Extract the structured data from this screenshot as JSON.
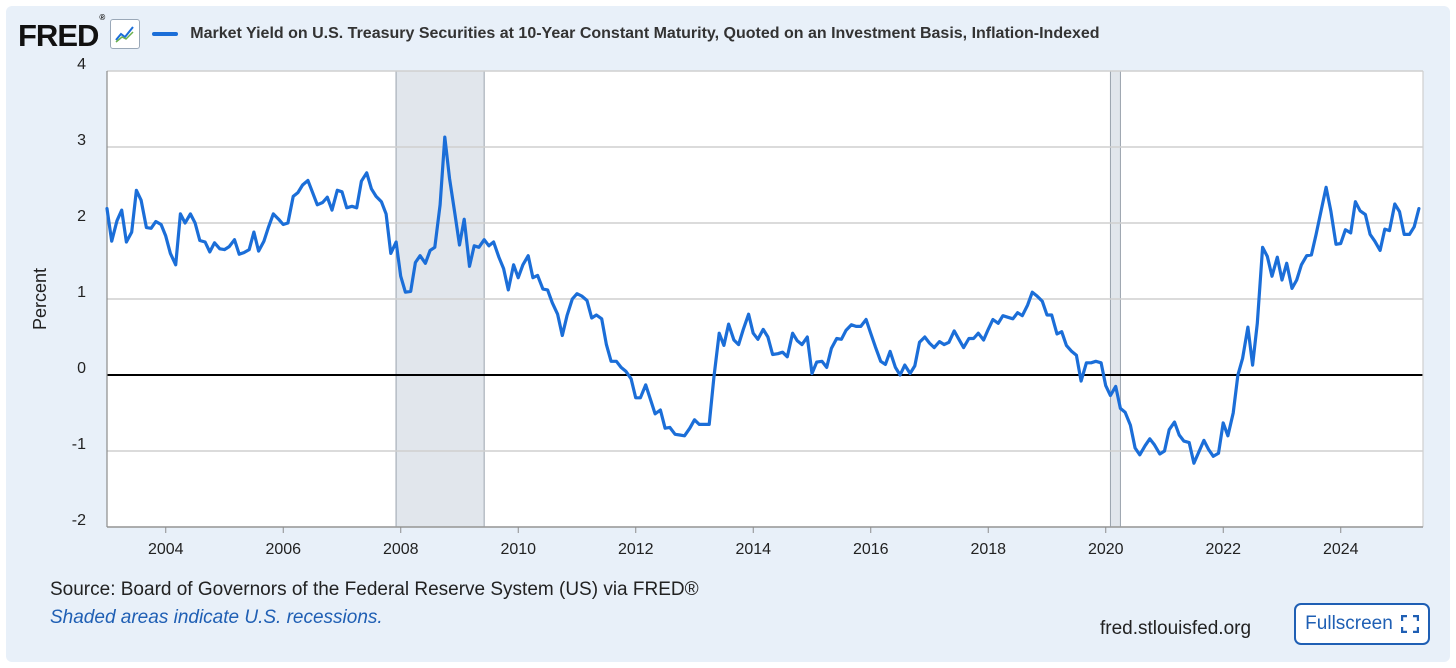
{
  "header": {
    "logo_text": "FRED",
    "logo_reg": "®",
    "series_title": "Market Yield on U.S. Treasury Securities at 10-Year Constant Maturity, Quoted on an Investment Basis, Inflation-Indexed"
  },
  "footer": {
    "source": "Source: Board of Governors of the Federal Reserve System (US) via FRED®",
    "recession_note": "Shaded areas indicate U.S. recessions.",
    "site": "fred.stlouisfed.org",
    "fullscreen_label": "Fullscreen"
  },
  "colors": {
    "line": "#1b6ed8",
    "recession": "#e1e6ec",
    "grid": "#cfcfcf",
    "zero": "#000000"
  },
  "icons": {
    "graph": "line-graph-icon",
    "fullscreen": "expand-corners-icon"
  },
  "chart_data": {
    "type": "line",
    "title": "Market Yield on U.S. Treasury Securities at 10-Year Constant Maturity, Quoted on an Investment Basis, Inflation-Indexed",
    "xlabel": "",
    "ylabel": "Percent",
    "xlim": [
      2003.0,
      2025.4
    ],
    "ylim": [
      -2,
      4
    ],
    "yticks": [
      4,
      3,
      2,
      1,
      0,
      -1,
      -2
    ],
    "xticks": [
      "2004",
      "2006",
      "2008",
      "2010",
      "2012",
      "2014",
      "2016",
      "2018",
      "2020",
      "2022",
      "2024"
    ],
    "grid": true,
    "recessions": [
      [
        2007.92,
        2009.42
      ],
      [
        2020.08,
        2020.25
      ]
    ],
    "series": [
      {
        "name": "Market Yield on U.S. Treasury Securities at 10-Year Constant Maturity, Quoted on an Investment Basis, Inflation-Indexed",
        "points": [
          [
            2003.0,
            2.19
          ],
          [
            2003.08,
            1.76
          ],
          [
            2003.17,
            2.03
          ],
          [
            2003.25,
            2.17
          ],
          [
            2003.33,
            1.75
          ],
          [
            2003.42,
            1.88
          ],
          [
            2003.5,
            2.43
          ],
          [
            2003.58,
            2.3
          ],
          [
            2003.67,
            1.94
          ],
          [
            2003.75,
            1.93
          ],
          [
            2003.83,
            2.02
          ],
          [
            2003.92,
            1.98
          ],
          [
            2004.0,
            1.83
          ],
          [
            2004.08,
            1.6
          ],
          [
            2004.17,
            1.45
          ],
          [
            2004.25,
            2.12
          ],
          [
            2004.33,
            2.0
          ],
          [
            2004.42,
            2.12
          ],
          [
            2004.5,
            2.0
          ],
          [
            2004.58,
            1.77
          ],
          [
            2004.67,
            1.75
          ],
          [
            2004.75,
            1.62
          ],
          [
            2004.83,
            1.74
          ],
          [
            2004.92,
            1.66
          ],
          [
            2005.0,
            1.65
          ],
          [
            2005.08,
            1.69
          ],
          [
            2005.17,
            1.78
          ],
          [
            2005.25,
            1.59
          ],
          [
            2005.33,
            1.61
          ],
          [
            2005.42,
            1.65
          ],
          [
            2005.5,
            1.88
          ],
          [
            2005.58,
            1.63
          ],
          [
            2005.67,
            1.76
          ],
          [
            2005.75,
            1.95
          ],
          [
            2005.83,
            2.12
          ],
          [
            2005.92,
            2.05
          ],
          [
            2006.0,
            1.98
          ],
          [
            2006.08,
            2.0
          ],
          [
            2006.17,
            2.35
          ],
          [
            2006.25,
            2.4
          ],
          [
            2006.33,
            2.5
          ],
          [
            2006.42,
            2.56
          ],
          [
            2006.5,
            2.4
          ],
          [
            2006.58,
            2.24
          ],
          [
            2006.67,
            2.27
          ],
          [
            2006.75,
            2.34
          ],
          [
            2006.83,
            2.17
          ],
          [
            2006.92,
            2.43
          ],
          [
            2007.0,
            2.41
          ],
          [
            2007.08,
            2.2
          ],
          [
            2007.17,
            2.22
          ],
          [
            2007.25,
            2.2
          ],
          [
            2007.33,
            2.55
          ],
          [
            2007.42,
            2.66
          ],
          [
            2007.5,
            2.45
          ],
          [
            2007.58,
            2.35
          ],
          [
            2007.67,
            2.28
          ],
          [
            2007.75,
            2.12
          ],
          [
            2007.83,
            1.6
          ],
          [
            2007.92,
            1.75
          ],
          [
            2008.0,
            1.3
          ],
          [
            2008.08,
            1.09
          ],
          [
            2008.17,
            1.1
          ],
          [
            2008.25,
            1.48
          ],
          [
            2008.33,
            1.57
          ],
          [
            2008.42,
            1.47
          ],
          [
            2008.5,
            1.64
          ],
          [
            2008.58,
            1.68
          ],
          [
            2008.67,
            2.24
          ],
          [
            2008.75,
            3.13
          ],
          [
            2008.83,
            2.59
          ],
          [
            2008.92,
            2.13
          ],
          [
            2009.0,
            1.71
          ],
          [
            2009.08,
            2.05
          ],
          [
            2009.17,
            1.43
          ],
          [
            2009.25,
            1.7
          ],
          [
            2009.33,
            1.68
          ],
          [
            2009.42,
            1.78
          ],
          [
            2009.5,
            1.7
          ],
          [
            2009.58,
            1.75
          ],
          [
            2009.67,
            1.55
          ],
          [
            2009.75,
            1.4
          ],
          [
            2009.83,
            1.12
          ],
          [
            2009.92,
            1.45
          ],
          [
            2010.0,
            1.28
          ],
          [
            2010.08,
            1.45
          ],
          [
            2010.17,
            1.57
          ],
          [
            2010.25,
            1.28
          ],
          [
            2010.33,
            1.31
          ],
          [
            2010.42,
            1.13
          ],
          [
            2010.5,
            1.12
          ],
          [
            2010.58,
            0.95
          ],
          [
            2010.67,
            0.8
          ],
          [
            2010.75,
            0.52
          ],
          [
            2010.83,
            0.78
          ],
          [
            2010.92,
            1.0
          ],
          [
            2011.0,
            1.07
          ],
          [
            2011.08,
            1.04
          ],
          [
            2011.17,
            0.98
          ],
          [
            2011.25,
            0.75
          ],
          [
            2011.33,
            0.79
          ],
          [
            2011.42,
            0.74
          ],
          [
            2011.5,
            0.4
          ],
          [
            2011.58,
            0.18
          ],
          [
            2011.67,
            0.18
          ],
          [
            2011.75,
            0.1
          ],
          [
            2011.83,
            0.05
          ],
          [
            2011.92,
            -0.05
          ],
          [
            2012.0,
            -0.3
          ],
          [
            2012.08,
            -0.3
          ],
          [
            2012.17,
            -0.13
          ],
          [
            2012.25,
            -0.32
          ],
          [
            2012.33,
            -0.51
          ],
          [
            2012.42,
            -0.46
          ],
          [
            2012.5,
            -0.7
          ],
          [
            2012.58,
            -0.69
          ],
          [
            2012.67,
            -0.78
          ],
          [
            2012.75,
            -0.79
          ],
          [
            2012.83,
            -0.8
          ],
          [
            2012.92,
            -0.7
          ],
          [
            2013.0,
            -0.59
          ],
          [
            2013.08,
            -0.65
          ],
          [
            2013.17,
            -0.65
          ],
          [
            2013.25,
            -0.65
          ],
          [
            2013.33,
            -0.03
          ],
          [
            2013.42,
            0.55
          ],
          [
            2013.5,
            0.39
          ],
          [
            2013.58,
            0.67
          ],
          [
            2013.67,
            0.46
          ],
          [
            2013.75,
            0.4
          ],
          [
            2013.83,
            0.6
          ],
          [
            2013.92,
            0.8
          ],
          [
            2014.0,
            0.55
          ],
          [
            2014.08,
            0.47
          ],
          [
            2014.17,
            0.6
          ],
          [
            2014.25,
            0.5
          ],
          [
            2014.33,
            0.27
          ],
          [
            2014.42,
            0.28
          ],
          [
            2014.5,
            0.3
          ],
          [
            2014.58,
            0.24
          ],
          [
            2014.67,
            0.55
          ],
          [
            2014.75,
            0.45
          ],
          [
            2014.83,
            0.4
          ],
          [
            2014.92,
            0.5
          ],
          [
            2015.0,
            0.02
          ],
          [
            2015.08,
            0.17
          ],
          [
            2015.17,
            0.18
          ],
          [
            2015.25,
            0.1
          ],
          [
            2015.33,
            0.35
          ],
          [
            2015.42,
            0.48
          ],
          [
            2015.5,
            0.47
          ],
          [
            2015.58,
            0.59
          ],
          [
            2015.67,
            0.66
          ],
          [
            2015.75,
            0.64
          ],
          [
            2015.83,
            0.64
          ],
          [
            2015.92,
            0.73
          ],
          [
            2016.0,
            0.55
          ],
          [
            2016.08,
            0.37
          ],
          [
            2016.17,
            0.18
          ],
          [
            2016.25,
            0.14
          ],
          [
            2016.33,
            0.31
          ],
          [
            2016.42,
            0.1
          ],
          [
            2016.5,
            0.0
          ],
          [
            2016.58,
            0.13
          ],
          [
            2016.67,
            0.02
          ],
          [
            2016.75,
            0.12
          ],
          [
            2016.83,
            0.43
          ],
          [
            2016.92,
            0.5
          ],
          [
            2017.0,
            0.42
          ],
          [
            2017.08,
            0.36
          ],
          [
            2017.17,
            0.44
          ],
          [
            2017.25,
            0.4
          ],
          [
            2017.33,
            0.43
          ],
          [
            2017.42,
            0.58
          ],
          [
            2017.5,
            0.47
          ],
          [
            2017.58,
            0.36
          ],
          [
            2017.67,
            0.48
          ],
          [
            2017.75,
            0.48
          ],
          [
            2017.83,
            0.55
          ],
          [
            2017.92,
            0.46
          ],
          [
            2018.0,
            0.6
          ],
          [
            2018.08,
            0.73
          ],
          [
            2018.17,
            0.68
          ],
          [
            2018.25,
            0.78
          ],
          [
            2018.33,
            0.76
          ],
          [
            2018.42,
            0.74
          ],
          [
            2018.5,
            0.82
          ],
          [
            2018.58,
            0.78
          ],
          [
            2018.67,
            0.92
          ],
          [
            2018.75,
            1.09
          ],
          [
            2018.83,
            1.04
          ],
          [
            2018.92,
            0.97
          ],
          [
            2019.0,
            0.79
          ],
          [
            2019.08,
            0.79
          ],
          [
            2019.17,
            0.54
          ],
          [
            2019.25,
            0.57
          ],
          [
            2019.33,
            0.39
          ],
          [
            2019.42,
            0.31
          ],
          [
            2019.5,
            0.26
          ],
          [
            2019.58,
            -0.08
          ],
          [
            2019.67,
            0.16
          ],
          [
            2019.75,
            0.16
          ],
          [
            2019.83,
            0.18
          ],
          [
            2019.92,
            0.16
          ],
          [
            2020.0,
            -0.14
          ],
          [
            2020.08,
            -0.27
          ],
          [
            2020.17,
            -0.15
          ],
          [
            2020.25,
            -0.44
          ],
          [
            2020.33,
            -0.49
          ],
          [
            2020.42,
            -0.66
          ],
          [
            2020.5,
            -0.96
          ],
          [
            2020.58,
            -1.05
          ],
          [
            2020.67,
            -0.93
          ],
          [
            2020.75,
            -0.84
          ],
          [
            2020.83,
            -0.92
          ],
          [
            2020.92,
            -1.04
          ],
          [
            2021.0,
            -1.0
          ],
          [
            2021.08,
            -0.72
          ],
          [
            2021.17,
            -0.62
          ],
          [
            2021.25,
            -0.79
          ],
          [
            2021.33,
            -0.87
          ],
          [
            2021.42,
            -0.89
          ],
          [
            2021.5,
            -1.16
          ],
          [
            2021.58,
            -1.02
          ],
          [
            2021.67,
            -0.86
          ],
          [
            2021.75,
            -0.98
          ],
          [
            2021.83,
            -1.07
          ],
          [
            2021.92,
            -1.03
          ],
          [
            2022.0,
            -0.63
          ],
          [
            2022.08,
            -0.8
          ],
          [
            2022.17,
            -0.5
          ],
          [
            2022.25,
            0.0
          ],
          [
            2022.33,
            0.22
          ],
          [
            2022.42,
            0.63
          ],
          [
            2022.5,
            0.13
          ],
          [
            2022.58,
            0.68
          ],
          [
            2022.67,
            1.68
          ],
          [
            2022.75,
            1.56
          ],
          [
            2022.83,
            1.3
          ],
          [
            2022.92,
            1.55
          ],
          [
            2023.0,
            1.25
          ],
          [
            2023.08,
            1.47
          ],
          [
            2023.17,
            1.14
          ],
          [
            2023.25,
            1.25
          ],
          [
            2023.33,
            1.45
          ],
          [
            2023.42,
            1.57
          ],
          [
            2023.5,
            1.58
          ],
          [
            2023.58,
            1.85
          ],
          [
            2023.67,
            2.18
          ],
          [
            2023.75,
            2.47
          ],
          [
            2023.83,
            2.16
          ],
          [
            2023.92,
            1.72
          ],
          [
            2024.0,
            1.73
          ],
          [
            2024.08,
            1.91
          ],
          [
            2024.17,
            1.87
          ],
          [
            2024.25,
            2.28
          ],
          [
            2024.33,
            2.16
          ],
          [
            2024.42,
            2.11
          ],
          [
            2024.5,
            1.85
          ],
          [
            2024.58,
            1.76
          ],
          [
            2024.67,
            1.64
          ],
          [
            2024.75,
            1.92
          ],
          [
            2024.83,
            1.9
          ],
          [
            2024.92,
            2.25
          ],
          [
            2025.0,
            2.15
          ],
          [
            2025.08,
            1.85
          ],
          [
            2025.17,
            1.85
          ],
          [
            2025.25,
            1.95
          ],
          [
            2025.33,
            2.19
          ]
        ]
      }
    ]
  }
}
